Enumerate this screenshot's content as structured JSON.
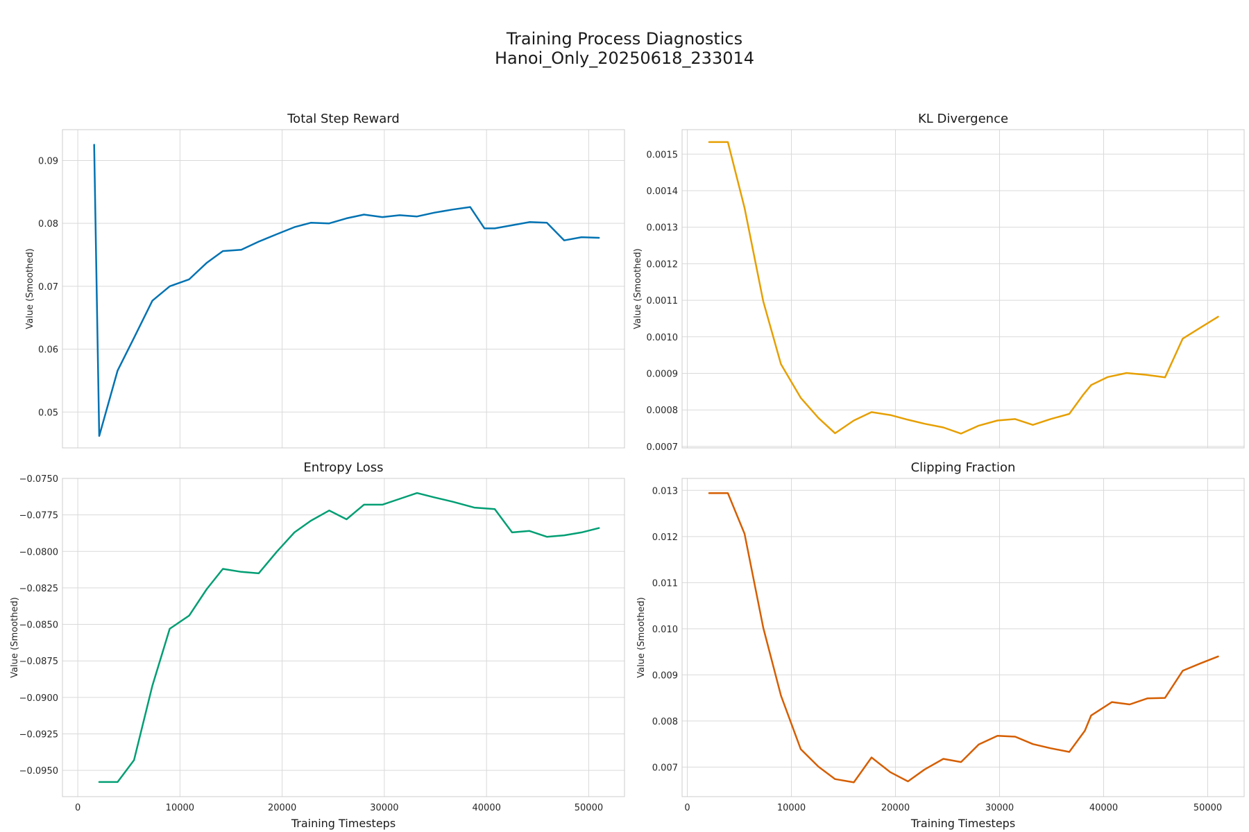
{
  "figure": {
    "title_line1": "Training Process Diagnostics",
    "title_line2": "Hanoi_Only_20250618_233014"
  },
  "chart_data": [
    {
      "type": "line",
      "title": "Total Step Reward",
      "xlabel": "",
      "ylabel": "Value (Smoothed)",
      "xlim": [
        -1500,
        53500
      ],
      "ylim": [
        0.0443,
        0.0949
      ],
      "xticks": [],
      "yticks": [
        0.05,
        0.06,
        0.07,
        0.08,
        0.09
      ],
      "ytick_labels": [
        "0.05",
        "0.06",
        "0.07",
        "0.08",
        "0.09"
      ],
      "grid": true,
      "color": "#0072B2",
      "x": [
        1600,
        2100,
        3900,
        5500,
        7300,
        9000,
        10900,
        12600,
        14200,
        16000,
        17700,
        19500,
        21200,
        22800,
        24600,
        26300,
        28000,
        29800,
        31500,
        33200,
        34900,
        36700,
        38400,
        39800,
        40800,
        42500,
        44200,
        45900,
        47600,
        49300,
        51000
      ],
      "values": [
        0.0925,
        0.0462,
        0.0566,
        0.0618,
        0.0677,
        0.07,
        0.0711,
        0.0737,
        0.0756,
        0.0758,
        0.0771,
        0.0783,
        0.0794,
        0.0801,
        0.08,
        0.0808,
        0.0814,
        0.081,
        0.0813,
        0.0811,
        0.0817,
        0.0822,
        0.0826,
        0.0792,
        0.0792,
        0.0797,
        0.0802,
        0.0801,
        0.0773,
        0.0778,
        0.0777
      ]
    },
    {
      "type": "line",
      "title": "KL Divergence",
      "xlabel": "",
      "ylabel": "Value (Smoothed)",
      "xlim": [
        -500,
        53500
      ],
      "ylim": [
        0.000696,
        0.001567
      ],
      "xticks": [],
      "yticks": [
        0.0007,
        0.0008,
        0.0009,
        0.001,
        0.0011,
        0.0012,
        0.0013,
        0.0014,
        0.0015
      ],
      "ytick_labels": [
        "0.0007",
        "0.0008",
        "0.0009",
        "0.0010",
        "0.0011",
        "0.0012",
        "0.0013",
        "0.0014",
        "0.0015"
      ],
      "grid": true,
      "color": "#E69F00",
      "x": [
        2100,
        3900,
        5500,
        7300,
        9000,
        10900,
        12600,
        14200,
        16000,
        17700,
        19500,
        21200,
        22800,
        24600,
        26300,
        28000,
        29800,
        31500,
        33200,
        34900,
        36700,
        38000,
        38800,
        40400,
        42200,
        44100,
        45900,
        47600,
        49300,
        51000
      ],
      "values": [
        0.001533,
        0.001533,
        0.001353,
        0.001097,
        0.000925,
        0.000833,
        0.000778,
        0.000736,
        0.000771,
        0.000794,
        0.000786,
        0.000773,
        0.000762,
        0.000752,
        0.000735,
        0.000757,
        0.000771,
        0.000775,
        0.000759,
        0.000775,
        0.000789,
        0.00084,
        0.000868,
        0.00089,
        0.000901,
        0.000896,
        0.000889,
        0.000995,
        0.001025,
        0.001055
      ]
    },
    {
      "type": "line",
      "title": "Entropy Loss",
      "xlabel": "Training Timesteps",
      "ylabel": "Value (Smoothed)",
      "xlim": [
        -1500,
        53500
      ],
      "ylim": [
        -0.0968,
        -0.075
      ],
      "xticks": [
        0,
        10000,
        20000,
        30000,
        40000,
        50000
      ],
      "xtick_labels": [
        "0",
        "10000",
        "20000",
        "30000",
        "40000",
        "50000"
      ],
      "yticks": [
        -0.095,
        -0.0925,
        -0.09,
        -0.0875,
        -0.085,
        -0.0825,
        -0.08,
        -0.0775,
        -0.075
      ],
      "ytick_labels": [
        "−0.0950",
        "−0.0925",
        "−0.0900",
        "−0.0875",
        "−0.0850",
        "−0.0825",
        "−0.0800",
        "−0.0775",
        "−0.0750"
      ],
      "grid": true,
      "color": "#009E73",
      "x": [
        2100,
        3900,
        5500,
        7300,
        9000,
        10900,
        12600,
        14200,
        16000,
        17700,
        19500,
        21200,
        22800,
        24600,
        26300,
        28000,
        29800,
        31500,
        33200,
        34900,
        36700,
        38800,
        40800,
        42500,
        44200,
        45900,
        47600,
        49300,
        51000
      ],
      "values": [
        -0.0958,
        -0.0958,
        -0.0943,
        -0.0892,
        -0.0853,
        -0.0844,
        -0.0826,
        -0.0812,
        -0.0814,
        -0.0815,
        -0.08,
        -0.0787,
        -0.0779,
        -0.0772,
        -0.0778,
        -0.0768,
        -0.0768,
        -0.0764,
        -0.076,
        -0.0763,
        -0.0766,
        -0.077,
        -0.0771,
        -0.0787,
        -0.0786,
        -0.079,
        -0.0789,
        -0.0787,
        -0.0784
      ]
    },
    {
      "type": "line",
      "title": "Clipping Fraction",
      "xlabel": "Training Timesteps",
      "ylabel": "Value (Smoothed)",
      "xlim": [
        -500,
        53500
      ],
      "ylim": [
        0.00636,
        0.01326
      ],
      "xticks": [
        0,
        10000,
        20000,
        30000,
        40000,
        50000
      ],
      "xtick_labels": [
        "0",
        "10000",
        "20000",
        "30000",
        "40000",
        "50000"
      ],
      "yticks": [
        0.007,
        0.008,
        0.009,
        0.01,
        0.011,
        0.012,
        0.013
      ],
      "ytick_labels": [
        "0.007",
        "0.008",
        "0.009",
        "0.010",
        "0.011",
        "0.012",
        "0.013"
      ],
      "grid": true,
      "color": "#D55E00",
      "x": [
        2100,
        3900,
        5500,
        7300,
        9000,
        10900,
        12600,
        14200,
        16000,
        17700,
        19500,
        21200,
        22800,
        24600,
        26300,
        28000,
        29800,
        31500,
        33200,
        34900,
        36700,
        38200,
        38800,
        40800,
        42500,
        44200,
        45900,
        47600,
        49300,
        51000
      ],
      "values": [
        0.01294,
        0.01294,
        0.01206,
        0.01002,
        0.00855,
        0.00739,
        0.00701,
        0.00674,
        0.00667,
        0.00721,
        0.00689,
        0.00669,
        0.00695,
        0.00718,
        0.00711,
        0.00749,
        0.00768,
        0.00766,
        0.0075,
        0.00741,
        0.00733,
        0.00779,
        0.00812,
        0.00841,
        0.00836,
        0.00849,
        0.0085,
        0.00909,
        0.00925,
        0.0094
      ]
    }
  ]
}
